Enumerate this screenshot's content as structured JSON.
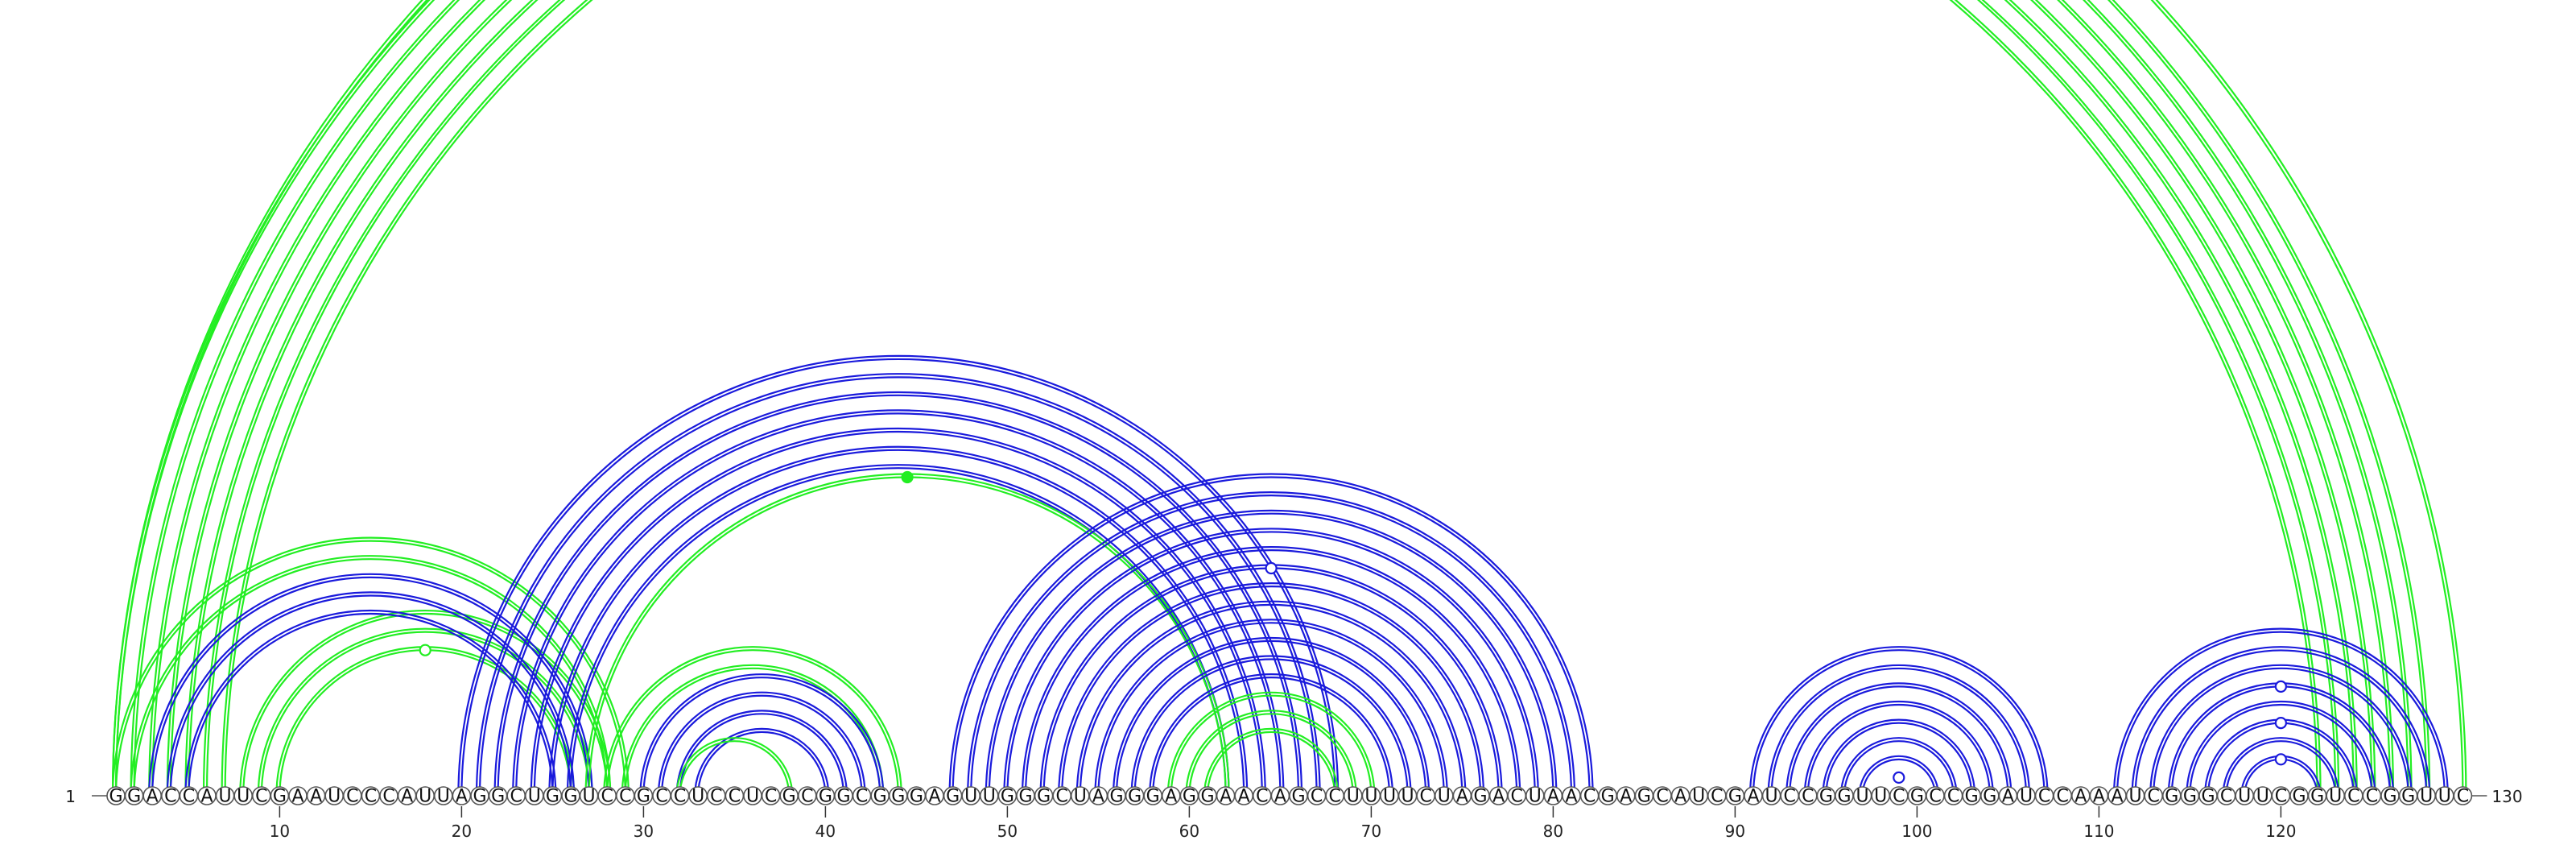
{
  "sequence": "GGACCAUUCGAAUCCCAUUAGGCUGGUCCGCCUCCUCGCGGCGGGAGUUGGGCUAGGGAGGAACAGCCUUUUCUAGACUAACGAGCAUCGAUCCGGUUCGCCGGAUCCAAAUCGGGCUUCGGUCCGGUUC",
  "start_label": "1",
  "end_label": "130",
  "tick_labels": [
    "10",
    "20",
    "30",
    "40",
    "50",
    "60",
    "70",
    "80",
    "90",
    "100",
    "110",
    "120"
  ],
  "colors": {
    "green": "#22ee22",
    "blue": "#1a1adc",
    "backbone": "#555555"
  },
  "arc_groups": [
    {
      "color": "green",
      "side": "top",
      "pairs": [
        [
          1,
          130
        ],
        [
          1,
          128
        ],
        [
          2,
          127
        ],
        [
          3,
          126
        ],
        [
          4,
          125
        ],
        [
          5,
          124
        ],
        [
          6,
          123
        ],
        [
          7,
          122
        ]
      ],
      "marker": {
        "i": 4,
        "j": 125,
        "filled": false
      }
    },
    {
      "color": "green",
      "side": "top",
      "pairs": [
        [
          1,
          29
        ],
        [
          2,
          28
        ],
        [
          8,
          28
        ],
        [
          9,
          27
        ],
        [
          10,
          26
        ]
      ],
      "marker": {
        "i": 10,
        "j": 26,
        "filled": false
      }
    },
    {
      "color": "blue",
      "side": "top",
      "pairs": [
        [
          3,
          27
        ],
        [
          4,
          26
        ],
        [
          5,
          25
        ]
      ]
    },
    {
      "color": "blue",
      "side": "top",
      "pairs": [
        [
          20,
          68
        ],
        [
          21,
          67
        ],
        [
          22,
          66
        ],
        [
          23,
          65
        ],
        [
          24,
          64
        ],
        [
          25,
          63
        ],
        [
          26,
          62
        ]
      ]
    },
    {
      "color": "green",
      "side": "top",
      "pairs": [
        [
          27,
          62
        ]
      ],
      "marker": {
        "i": 27,
        "j": 62,
        "filled": true
      }
    },
    {
      "color": "green",
      "side": "top",
      "pairs": [
        [
          28,
          44
        ],
        [
          29,
          43
        ]
      ]
    },
    {
      "color": "blue",
      "side": "top",
      "pairs": [
        [
          30,
          43
        ],
        [
          31,
          42
        ],
        [
          32,
          41
        ],
        [
          33,
          40
        ]
      ]
    },
    {
      "color": "green",
      "side": "top",
      "pairs": [
        [
          32,
          38
        ]
      ]
    },
    {
      "color": "blue",
      "side": "top",
      "pairs": [
        [
          47,
          82
        ],
        [
          48,
          81
        ],
        [
          49,
          80
        ],
        [
          50,
          79
        ],
        [
          51,
          78
        ],
        [
          52,
          77
        ],
        [
          53,
          76
        ]
      ],
      "marker": {
        "i": 52,
        "j": 77,
        "filled": false
      }
    },
    {
      "color": "blue",
      "side": "top",
      "pairs": [
        [
          54,
          75
        ],
        [
          55,
          74
        ],
        [
          56,
          73
        ],
        [
          57,
          72
        ],
        [
          58,
          71
        ]
      ]
    },
    {
      "color": "green",
      "side": "top",
      "pairs": [
        [
          59,
          70
        ],
        [
          60,
          69
        ],
        [
          61,
          68
        ]
      ]
    },
    {
      "color": "blue",
      "side": "top",
      "pairs": [
        [
          91,
          107
        ],
        [
          92,
          106
        ],
        [
          93,
          105
        ],
        [
          94,
          104
        ],
        [
          95,
          103
        ],
        [
          96,
          102
        ],
        [
          97,
          101
        ]
      ],
      "marker": {
        "i": 98,
        "j": 100,
        "filled": false
      }
    },
    {
      "color": "blue",
      "side": "top",
      "pairs": [
        [
          111,
          129
        ],
        [
          112,
          128
        ],
        [
          113,
          127
        ],
        [
          114,
          126
        ],
        [
          115,
          125
        ],
        [
          116,
          124
        ],
        [
          117,
          123
        ],
        [
          118,
          122
        ]
      ],
      "markers": [
        {
          "i": 114,
          "j": 126,
          "filled": false
        },
        {
          "i": 116,
          "j": 124,
          "filled": false
        },
        {
          "i": 118,
          "j": 122,
          "filled": false
        }
      ]
    }
  ]
}
